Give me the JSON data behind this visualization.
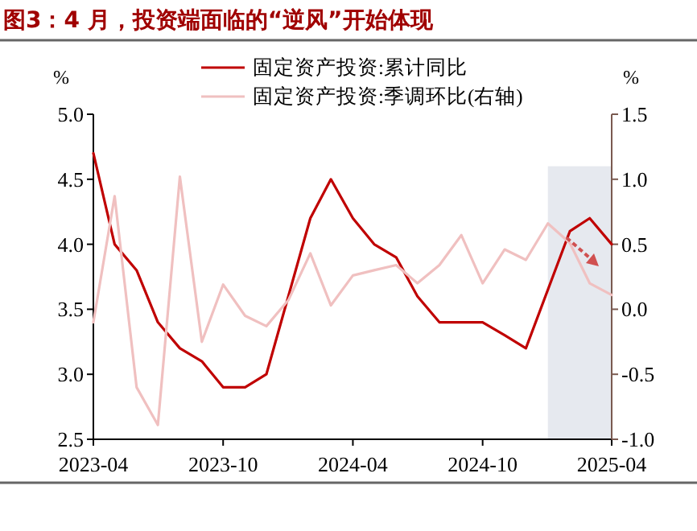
{
  "chart_data": {
    "type": "line",
    "title": "图3：4 月，投资端面临的“逆风”开始体现",
    "ylabel": "%",
    "y2label": "%",
    "series": [
      {
        "name": "固定资产投资:累计同比",
        "color": "#c00000",
        "x": [
          "2023-04",
          "2023-05",
          "2023-06",
          "2023-07",
          "2023-08",
          "2023-09",
          "2023-10",
          "2023-11",
          "2023-12",
          "2024-02",
          "2024-03",
          "2024-04",
          "2024-05",
          "2024-06",
          "2024-07",
          "2024-08",
          "2024-09",
          "2024-10",
          "2024-11",
          "2024-12",
          "2025-02",
          "2025-03",
          "2025-04"
        ],
        "values": [
          4.7,
          4.0,
          3.8,
          3.4,
          3.2,
          3.1,
          2.9,
          2.9,
          3.0,
          4.2,
          4.5,
          4.2,
          4.0,
          3.9,
          3.6,
          3.4,
          3.4,
          3.4,
          3.3,
          3.2,
          4.1,
          4.2,
          4.0
        ]
      },
      {
        "name": "固定资产投资:季调环比(右轴)",
        "color": "#f0c0c0",
        "axis": "y2",
        "x": [
          "2023-04",
          "2023-05",
          "2023-06",
          "2023-07",
          "2023-08",
          "2023-09",
          "2023-10",
          "2023-11",
          "2023-12",
          "2024-01",
          "2024-02",
          "2024-03",
          "2024-04",
          "2024-05",
          "2024-06",
          "2024-07",
          "2024-08",
          "2024-09",
          "2024-10",
          "2024-11",
          "2024-12",
          "2025-01",
          "2025-02",
          "2025-03",
          "2025-04"
        ],
        "values": [
          -0.1,
          0.87,
          -0.6,
          -0.89,
          1.02,
          -0.25,
          0.19,
          -0.05,
          -0.13,
          0.07,
          0.43,
          0.03,
          0.26,
          0.3,
          0.34,
          0.2,
          0.34,
          0.57,
          0.2,
          0.46,
          0.38,
          0.66,
          0.51,
          0.2,
          0.11
        ]
      }
    ],
    "xlim": [
      "2023-04",
      "2025-04"
    ],
    "xticks": [
      "2023-04",
      "2023-10",
      "2024-04",
      "2024-10",
      "2025-04"
    ],
    "ylim": [
      2.5,
      5.0
    ],
    "yticks": [
      {
        "value": 2.5,
        "label": "2.5"
      },
      {
        "value": 3,
        "label": "3.0"
      },
      {
        "value": 3.5,
        "label": "3.5"
      },
      {
        "value": 4,
        "label": "4.0"
      },
      {
        "value": 4.5,
        "label": "4.5"
      },
      {
        "value": 5,
        "label": "5.0"
      }
    ],
    "y2lim": [
      -1.0,
      1.5
    ],
    "y2ticks": [
      {
        "value": -1,
        "label": "-1.0"
      },
      {
        "value": -0.5,
        "label": "-0.5"
      },
      {
        "value": 0,
        "label": "0.0"
      },
      {
        "value": 0.5,
        "label": "0.5"
      },
      {
        "value": 1,
        "label": "1.0"
      },
      {
        "value": 1.5,
        "label": "1.5"
      }
    ],
    "bands": [
      {
        "axis": "x",
        "from": "2025-01",
        "to": "2025-04",
        "color": "#e6e9ef"
      }
    ],
    "legend": "top",
    "grid": false,
    "marker": "none",
    "line_style": "solid"
  }
}
